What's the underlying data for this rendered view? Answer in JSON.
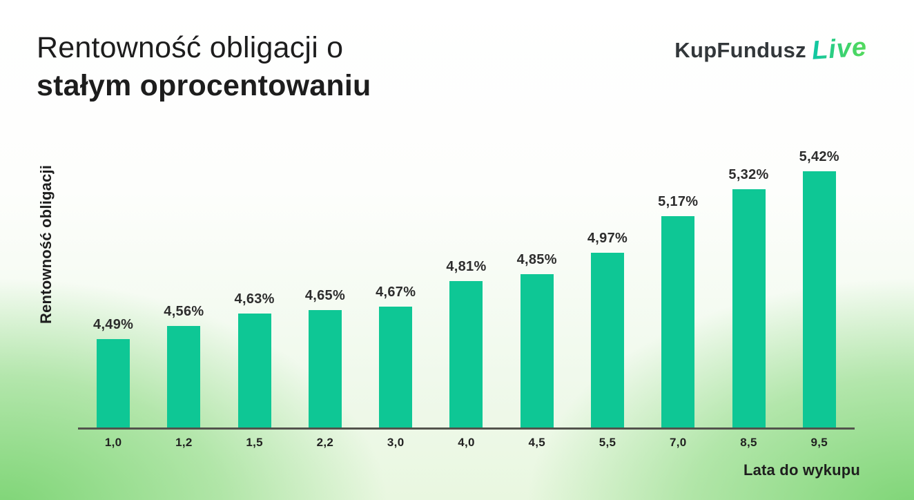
{
  "header": {
    "title_line1": "Rentowność obligacji o",
    "title_line2": "stałym oprocentowaniu",
    "logo_text": "KupFundusz",
    "logo_live": "Live"
  },
  "colors": {
    "bar": "#0ec795",
    "axis_line": "#52534c",
    "value_label": "#2d2d2d",
    "title_text": "#1d1d1d",
    "logo_dark": "#32373a",
    "logo_green_start": "#12c7a1",
    "logo_green_end": "#55da5d",
    "background_green": "#82d778"
  },
  "chart_data": {
    "type": "bar",
    "title": "Rentowność obligacji o stałym oprocentowaniu",
    "categories": [
      "1,0",
      "1,2",
      "1,5",
      "2,2",
      "3,0",
      "4,0",
      "4,5",
      "5,5",
      "7,0",
      "8,5",
      "9,5"
    ],
    "values": [
      4.49,
      4.56,
      4.63,
      4.65,
      4.67,
      4.81,
      4.85,
      4.97,
      5.17,
      5.32,
      5.42
    ],
    "value_labels": [
      "4,49%",
      "4,56%",
      "4,63%",
      "4,65%",
      "4,67%",
      "4,81%",
      "4,85%",
      "4,97%",
      "5,17%",
      "5,32%",
      "5,42%"
    ],
    "xlabel": "Lata do wykupu",
    "ylabel": "Rentowność obligacji",
    "ylim": [
      3.99,
      5.64
    ],
    "grid": false,
    "legend": false,
    "bar_color": "#0ec795"
  }
}
